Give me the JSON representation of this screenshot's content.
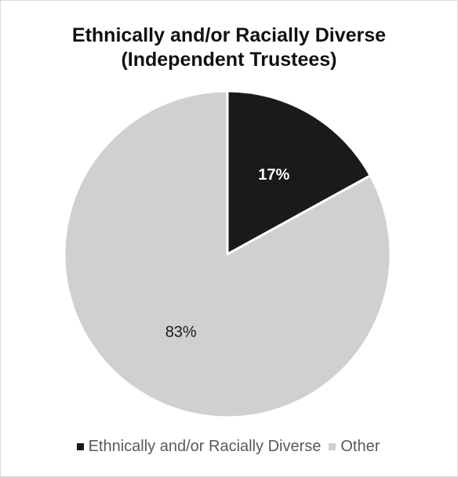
{
  "chart_data": {
    "type": "pie",
    "title": [
      "Ethnically and/or Racially Diverse",
      "(Independent Trustees)"
    ],
    "slices": [
      {
        "name": "Ethnically and/or Racially Diverse",
        "value": 17,
        "label": "17%",
        "color": "#1a1a1a",
        "label_color": "#ffffff"
      },
      {
        "name": "Other",
        "value": 83,
        "label": "83%",
        "color": "#d0d0d0",
        "label_color": "#1a1a1a"
      }
    ],
    "legend_position": "bottom"
  }
}
